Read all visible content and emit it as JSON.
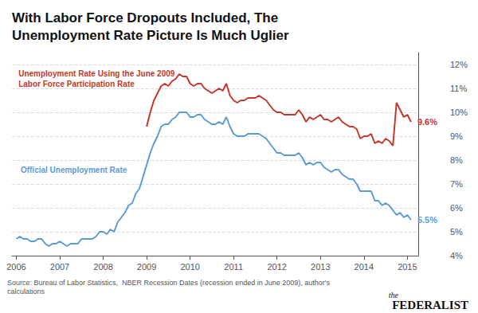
{
  "chart_data": {
    "type": "line",
    "title": "With Labor Force Dropouts Included, The\nUnemployment Rate Picture Is Much Uglier",
    "source": "Source: Bureau of Labor Statistics,  NBER Recession Dates (recession ended in June 2009), author's\ncalculations",
    "logo": [
      "the",
      "FEDERALIST"
    ],
    "grid": "y",
    "xlim": [
      2005.9,
      2015.25
    ],
    "xticks": [
      2006,
      2007,
      2008,
      2009,
      2010,
      2011,
      2012,
      2013,
      2014,
      2015
    ],
    "ylim": [
      4,
      12.5
    ],
    "yticks": [
      {
        "value": 4,
        "label": "4%"
      },
      {
        "value": 5,
        "label": "5%"
      },
      {
        "value": 6,
        "label": "6%"
      },
      {
        "value": 7,
        "label": "7%"
      },
      {
        "value": 8,
        "label": "8%"
      },
      {
        "value": 9,
        "label": "9%"
      },
      {
        "value": 10,
        "label": "10%"
      },
      {
        "value": 11,
        "label": "11%"
      },
      {
        "value": 12,
        "label": "12%"
      }
    ],
    "annotations": [
      {
        "text": "Unemployment Rate Using the June 2009\nLabor Force Participation Rate",
        "x": 2006.05,
        "y": 11.85,
        "color": "#c0392b"
      },
      {
        "text": "Official Unemployment Rate",
        "x": 2006.1,
        "y": 7.8,
        "color": "#5b9bd5"
      }
    ],
    "series": [
      {
        "color": "#5b9bd5",
        "end_label": "5.5%",
        "x": [
          2006.0,
          2006.083,
          2006.167,
          2006.25,
          2006.333,
          2006.417,
          2006.5,
          2006.583,
          2006.667,
          2006.75,
          2006.833,
          2006.917,
          2007.0,
          2007.083,
          2007.167,
          2007.25,
          2007.333,
          2007.417,
          2007.5,
          2007.583,
          2007.667,
          2007.75,
          2007.833,
          2007.917,
          2008.0,
          2008.083,
          2008.167,
          2008.25,
          2008.333,
          2008.417,
          2008.5,
          2008.583,
          2008.667,
          2008.75,
          2008.833,
          2008.917,
          2009.0,
          2009.083,
          2009.167,
          2009.25,
          2009.333,
          2009.417,
          2009.5,
          2009.583,
          2009.667,
          2009.75,
          2009.833,
          2009.917,
          2010.0,
          2010.083,
          2010.167,
          2010.25,
          2010.333,
          2010.417,
          2010.5,
          2010.583,
          2010.667,
          2010.75,
          2010.833,
          2010.917,
          2011.0,
          2011.083,
          2011.167,
          2011.25,
          2011.333,
          2011.417,
          2011.5,
          2011.583,
          2011.667,
          2011.75,
          2011.833,
          2011.917,
          2012.0,
          2012.083,
          2012.167,
          2012.25,
          2012.333,
          2012.417,
          2012.5,
          2012.583,
          2012.667,
          2012.75,
          2012.833,
          2012.917,
          2013.0,
          2013.083,
          2013.167,
          2013.25,
          2013.333,
          2013.417,
          2013.5,
          2013.583,
          2013.667,
          2013.75,
          2013.833,
          2013.917,
          2014.0,
          2014.083,
          2014.167,
          2014.25,
          2014.333,
          2014.417,
          2014.5,
          2014.583,
          2014.667,
          2014.75,
          2014.833,
          2014.917,
          2015.0,
          2015.083
        ],
        "values": [
          4.7,
          4.8,
          4.7,
          4.7,
          4.6,
          4.6,
          4.7,
          4.7,
          4.5,
          4.4,
          4.5,
          4.5,
          4.6,
          4.5,
          4.4,
          4.5,
          4.5,
          4.5,
          4.7,
          4.7,
          4.7,
          4.7,
          4.8,
          5.0,
          5.0,
          4.9,
          5.1,
          5.0,
          5.4,
          5.6,
          5.8,
          6.1,
          6.2,
          6.6,
          6.8,
          7.3,
          7.8,
          8.3,
          8.7,
          9.0,
          9.4,
          9.5,
          9.5,
          9.7,
          9.8,
          10.0,
          10.0,
          10.0,
          9.8,
          9.8,
          9.9,
          9.9,
          9.7,
          9.6,
          9.5,
          9.5,
          9.6,
          9.5,
          9.8,
          9.4,
          9.1,
          9.0,
          9.0,
          9.0,
          9.1,
          9.1,
          9.1,
          9.1,
          9.0,
          8.9,
          8.7,
          8.5,
          8.3,
          8.3,
          8.2,
          8.2,
          8.2,
          8.2,
          8.3,
          8.1,
          7.8,
          7.9,
          7.8,
          7.9,
          7.9,
          7.7,
          7.6,
          7.5,
          7.6,
          7.6,
          7.4,
          7.3,
          7.2,
          7.2,
          7.0,
          6.7,
          6.7,
          6.7,
          6.7,
          6.3,
          6.3,
          6.1,
          6.2,
          6.1,
          5.9,
          5.7,
          5.8,
          5.6,
          5.7,
          5.5
        ]
      },
      {
        "color": "#c0392b",
        "end_label": "9.6%",
        "x": [
          2009.0,
          2009.083,
          2009.167,
          2009.25,
          2009.333,
          2009.417,
          2009.5,
          2009.583,
          2009.667,
          2009.75,
          2009.833,
          2009.917,
          2010.0,
          2010.083,
          2010.167,
          2010.25,
          2010.333,
          2010.417,
          2010.5,
          2010.583,
          2010.667,
          2010.75,
          2010.833,
          2010.917,
          2011.0,
          2011.083,
          2011.167,
          2011.25,
          2011.333,
          2011.417,
          2011.5,
          2011.583,
          2011.667,
          2011.75,
          2011.833,
          2011.917,
          2012.0,
          2012.083,
          2012.167,
          2012.25,
          2012.333,
          2012.417,
          2012.5,
          2012.583,
          2012.667,
          2012.75,
          2012.833,
          2012.917,
          2013.0,
          2013.083,
          2013.167,
          2013.25,
          2013.333,
          2013.417,
          2013.5,
          2013.583,
          2013.667,
          2013.75,
          2013.833,
          2013.917,
          2014.0,
          2014.083,
          2014.167,
          2014.25,
          2014.333,
          2014.417,
          2014.5,
          2014.583,
          2014.667,
          2014.75,
          2014.833,
          2014.917,
          2015.0,
          2015.083
        ],
        "values": [
          9.4,
          10.0,
          10.5,
          10.8,
          11.1,
          11.2,
          11.1,
          11.3,
          11.4,
          11.6,
          11.5,
          11.5,
          11.2,
          11.1,
          11.2,
          11.2,
          11.0,
          10.9,
          10.8,
          10.9,
          11.0,
          10.9,
          11.2,
          10.7,
          10.5,
          10.4,
          10.5,
          10.5,
          10.6,
          10.6,
          10.6,
          10.7,
          10.6,
          10.5,
          10.3,
          10.1,
          10.0,
          10.0,
          9.9,
          9.9,
          9.9,
          9.9,
          10.1,
          9.9,
          9.6,
          9.8,
          9.7,
          9.8,
          9.9,
          9.7,
          9.7,
          9.6,
          9.7,
          9.8,
          9.6,
          9.5,
          9.4,
          9.4,
          9.3,
          8.9,
          9.0,
          9.0,
          9.1,
          8.7,
          8.8,
          8.7,
          8.9,
          8.8,
          8.6,
          10.4,
          10.1,
          9.8,
          9.9,
          9.6
        ]
      }
    ]
  }
}
